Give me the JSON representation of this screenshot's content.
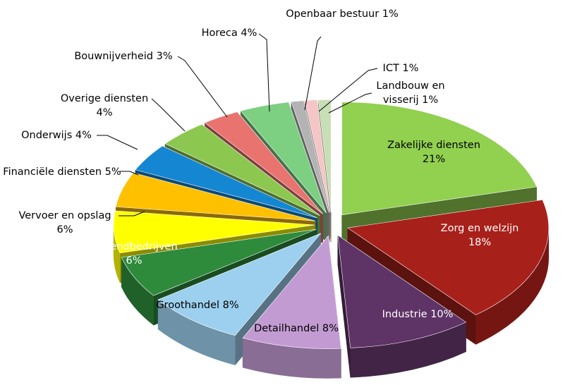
{
  "chart_data": {
    "type": "pie",
    "categories": [
      "Zakelijke diensten",
      "Zorg en welzijn",
      "Industrie",
      "Detailhandel",
      "Groothandel",
      "Uitzendbedrijven",
      "Vervoer en opslag",
      "Financiële diensten",
      "Onderwijs",
      "Overige diensten",
      "Bouwnijverheid",
      "Horeca",
      "Openbaar bestuur",
      "ICT",
      "Landbouw en visserij"
    ],
    "values": [
      21,
      18,
      10,
      8,
      8,
      6,
      6,
      5,
      4,
      4,
      3,
      4,
      1,
      1,
      1
    ],
    "value_labels": [
      "21%",
      "18%",
      "10%",
      "8%",
      "8%",
      "6%",
      "6%",
      "5%",
      "4%",
      "4%",
      "3%",
      "4%",
      "1%",
      "1%",
      "1%"
    ],
    "colors": [
      "#92d050",
      "#a8201a",
      "#5e3366",
      "#c39bd3",
      "#9dd0ef",
      "#2e8b3c",
      "#ffff00",
      "#ffc000",
      "#1587d2",
      "#8cc850",
      "#e8736f",
      "#7dcf82",
      "#b3b3b3",
      "#f5c6c6",
      "#c8deb4"
    ]
  }
}
